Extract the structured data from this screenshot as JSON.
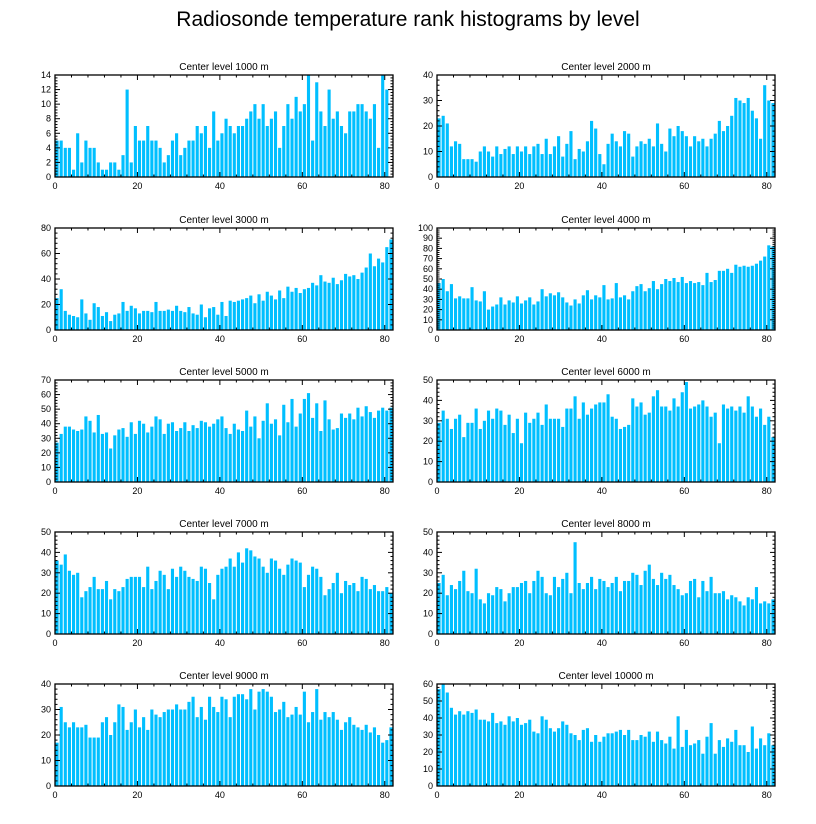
{
  "title": "Radiosonde temperature rank histograms by level",
  "bar_color": "#00bfff",
  "chart_data": [
    {
      "type": "bar",
      "title": "Center level 1000 m",
      "xlim": [
        0,
        82
      ],
      "ylim": [
        0,
        14
      ],
      "xticks": [
        0,
        20,
        40,
        60,
        80
      ],
      "yticks": [
        0,
        2,
        4,
        6,
        8,
        10,
        12,
        14
      ],
      "values": [
        5,
        5,
        4,
        4,
        1,
        6,
        2,
        5,
        4,
        4,
        2,
        1,
        1,
        2,
        2,
        1,
        3,
        12,
        2,
        7,
        5,
        5,
        7,
        5,
        5,
        4,
        2,
        3,
        5,
        6,
        3,
        4,
        5,
        5,
        7,
        6,
        7,
        4,
        9,
        5,
        6,
        8,
        7,
        6,
        7,
        7,
        8,
        9,
        10,
        8,
        10,
        7,
        8,
        9,
        4,
        7,
        10,
        8,
        11,
        9,
        10,
        14,
        5,
        13,
        9,
        7,
        12,
        8,
        9,
        7,
        6,
        9,
        9,
        10,
        10,
        9,
        8,
        10,
        4,
        14,
        12
      ]
    },
    {
      "type": "bar",
      "title": "Center level 2000 m",
      "xlim": [
        0,
        82
      ],
      "ylim": [
        0,
        40
      ],
      "xticks": [
        0,
        20,
        40,
        60,
        80
      ],
      "yticks": [
        0,
        10,
        20,
        30,
        40
      ],
      "values": [
        23,
        24,
        21,
        12,
        14,
        13,
        7,
        7,
        7,
        6,
        10,
        12,
        10,
        8,
        12,
        9,
        11,
        12,
        9,
        12,
        10,
        12,
        9,
        12,
        13,
        9,
        15,
        9,
        12,
        16,
        8,
        13,
        18,
        7,
        11,
        10,
        14,
        22,
        19,
        9,
        5,
        13,
        17,
        14,
        12,
        18,
        17,
        8,
        12,
        14,
        13,
        15,
        12,
        21,
        13,
        10,
        19,
        16,
        20,
        18,
        16,
        12,
        16,
        14,
        15,
        12,
        15,
        17,
        22,
        18,
        20,
        24,
        31,
        30,
        29,
        31,
        26,
        23,
        15,
        36,
        30,
        29
      ]
    },
    {
      "type": "bar",
      "title": "Center level 3000 m",
      "xlim": [
        0,
        82
      ],
      "ylim": [
        0,
        80
      ],
      "xticks": [
        0,
        20,
        40,
        60,
        80
      ],
      "yticks": [
        0,
        20,
        40,
        60,
        80
      ],
      "values": [
        25,
        32,
        15,
        12,
        11,
        10,
        24,
        13,
        8,
        21,
        18,
        11,
        14,
        7,
        12,
        13,
        22,
        15,
        19,
        17,
        13,
        15,
        15,
        14,
        22,
        15,
        15,
        16,
        15,
        19,
        15,
        14,
        18,
        13,
        12,
        20,
        10,
        17,
        18,
        12,
        22,
        11,
        23,
        22,
        23,
        24,
        25,
        27,
        21,
        28,
        23,
        30,
        27,
        24,
        31,
        25,
        34,
        30,
        33,
        29,
        32,
        33,
        37,
        35,
        43,
        38,
        37,
        41,
        36,
        39,
        44,
        42,
        43,
        40,
        45,
        49,
        60,
        50,
        56,
        53,
        65,
        71
      ]
    },
    {
      "type": "bar",
      "title": "Center level 4000 m",
      "xlim": [
        0,
        82
      ],
      "ylim": [
        0,
        100
      ],
      "xticks": [
        0,
        20,
        40,
        60,
        80
      ],
      "yticks": [
        0,
        10,
        20,
        30,
        40,
        50,
        60,
        70,
        80,
        90,
        100
      ],
      "values": [
        46,
        50,
        38,
        45,
        31,
        33,
        31,
        31,
        42,
        29,
        28,
        38,
        20,
        23,
        25,
        32,
        25,
        29,
        27,
        33,
        26,
        29,
        32,
        25,
        28,
        40,
        33,
        36,
        34,
        37,
        32,
        27,
        24,
        30,
        26,
        34,
        39,
        30,
        34,
        32,
        44,
        30,
        31,
        46,
        32,
        34,
        30,
        38,
        43,
        45,
        38,
        41,
        48,
        40,
        45,
        50,
        48,
        51,
        47,
        52,
        46,
        48,
        46,
        47,
        44,
        56,
        47,
        49,
        58,
        58,
        60,
        56,
        64,
        62,
        63,
        62,
        63,
        65,
        68,
        72,
        83,
        82
      ]
    },
    {
      "type": "bar",
      "title": "Center level 5000 m",
      "xlim": [
        0,
        82
      ],
      "ylim": [
        0,
        70
      ],
      "xticks": [
        0,
        20,
        40,
        60,
        80
      ],
      "yticks": [
        0,
        10,
        20,
        30,
        40,
        50,
        60,
        70
      ],
      "values": [
        27,
        33,
        38,
        38,
        36,
        35,
        36,
        45,
        42,
        34,
        46,
        33,
        34,
        23,
        32,
        36,
        37,
        31,
        41,
        33,
        42,
        40,
        34,
        38,
        45,
        43,
        33,
        40,
        41,
        35,
        37,
        41,
        35,
        39,
        37,
        42,
        41,
        38,
        40,
        43,
        45,
        37,
        33,
        40,
        36,
        35,
        49,
        38,
        45,
        30,
        42,
        54,
        40,
        43,
        32,
        53,
        41,
        57,
        38,
        47,
        57,
        61,
        44,
        54,
        35,
        56,
        43,
        36,
        37,
        47,
        44,
        47,
        43,
        51,
        45,
        52,
        48,
        44,
        49,
        51,
        49,
        51
      ]
    },
    {
      "type": "bar",
      "title": "Center level 6000 m",
      "xlim": [
        0,
        82
      ],
      "ylim": [
        0,
        50
      ],
      "xticks": [
        0,
        20,
        40,
        60,
        80
      ],
      "yticks": [
        0,
        10,
        20,
        30,
        40,
        50
      ],
      "values": [
        29,
        35,
        31,
        26,
        31,
        33,
        22,
        29,
        29,
        36,
        26,
        30,
        35,
        31,
        36,
        35,
        28,
        33,
        24,
        31,
        19,
        34,
        29,
        31,
        34,
        28,
        38,
        31,
        31,
        31,
        27,
        36,
        36,
        42,
        31,
        39,
        33,
        36,
        38,
        39,
        39,
        43,
        32,
        31,
        26,
        27,
        28,
        41,
        37,
        39,
        33,
        34,
        42,
        45,
        37,
        37,
        35,
        41,
        37,
        44,
        49,
        36,
        37,
        38,
        40,
        37,
        32,
        34,
        19,
        38,
        36,
        37,
        35,
        37,
        34,
        42,
        37,
        32,
        36,
        28,
        32,
        22
      ]
    },
    {
      "type": "bar",
      "title": "Center level 7000 m",
      "xlim": [
        0,
        82
      ],
      "ylim": [
        0,
        50
      ],
      "xticks": [
        0,
        20,
        40,
        60,
        80
      ],
      "yticks": [
        0,
        10,
        20,
        30,
        40,
        50
      ],
      "values": [
        36,
        34,
        39,
        31,
        29,
        30,
        18,
        21,
        23,
        28,
        22,
        22,
        26,
        17,
        22,
        21,
        23,
        27,
        28,
        28,
        28,
        23,
        33,
        22,
        26,
        31,
        29,
        22,
        32,
        28,
        33,
        31,
        28,
        27,
        26,
        33,
        32,
        25,
        17,
        29,
        32,
        33,
        37,
        33,
        40,
        35,
        42,
        41,
        38,
        37,
        33,
        30,
        37,
        36,
        32,
        29,
        34,
        37,
        36,
        35,
        23,
        29,
        33,
        32,
        28,
        19,
        22,
        25,
        30,
        20,
        26,
        24,
        25,
        21,
        28,
        27,
        22,
        24,
        21,
        21,
        23,
        20
      ]
    },
    {
      "type": "bar",
      "title": "Center level 8000 m",
      "xlim": [
        0,
        82
      ],
      "ylim": [
        0,
        50
      ],
      "xticks": [
        0,
        20,
        40,
        60,
        80
      ],
      "yticks": [
        0,
        10,
        20,
        30,
        40,
        50
      ],
      "values": [
        25,
        29,
        19,
        24,
        22,
        26,
        31,
        21,
        20,
        32,
        17,
        15,
        20,
        19,
        23,
        22,
        16,
        20,
        23,
        23,
        25,
        26,
        20,
        26,
        31,
        28,
        20,
        19,
        28,
        23,
        27,
        30,
        20,
        45,
        25,
        22,
        25,
        28,
        22,
        27,
        26,
        23,
        25,
        28,
        21,
        26,
        26,
        30,
        29,
        24,
        31,
        34,
        27,
        24,
        30,
        27,
        29,
        24,
        22,
        19,
        20,
        26,
        27,
        18,
        26,
        21,
        28,
        20,
        20,
        21,
        17,
        19,
        18,
        16,
        14,
        18,
        17,
        23,
        15,
        16,
        15,
        17
      ]
    },
    {
      "type": "bar",
      "title": "Center level 9000 m",
      "xlim": [
        0,
        82
      ],
      "ylim": [
        0,
        40
      ],
      "xticks": [
        0,
        20,
        40,
        60,
        80
      ],
      "yticks": [
        0,
        10,
        20,
        30,
        40
      ],
      "values": [
        17,
        31,
        25,
        23,
        25,
        23,
        23,
        24,
        19,
        19,
        19,
        25,
        27,
        20,
        25,
        32,
        31,
        22,
        25,
        30,
        23,
        27,
        22,
        30,
        28,
        27,
        29,
        30,
        30,
        32,
        30,
        30,
        33,
        35,
        27,
        31,
        26,
        35,
        31,
        29,
        35,
        34,
        27,
        35,
        36,
        36,
        34,
        38,
        30,
        37,
        38,
        37,
        35,
        29,
        30,
        33,
        27,
        28,
        31,
        28,
        37,
        25,
        29,
        38,
        26,
        29,
        27,
        29,
        26,
        22,
        25,
        27,
        24,
        23,
        22,
        24,
        21,
        23,
        20,
        17,
        18,
        23
      ]
    },
    {
      "type": "bar",
      "title": "Center level 10000 m",
      "xlim": [
        0,
        82
      ],
      "ylim": [
        0,
        60
      ],
      "xticks": [
        0,
        20,
        40,
        60,
        80
      ],
      "yticks": [
        0,
        10,
        20,
        30,
        40,
        50,
        60
      ],
      "values": [
        57,
        60,
        55,
        46,
        42,
        44,
        42,
        44,
        43,
        45,
        39,
        39,
        38,
        43,
        37,
        38,
        36,
        41,
        38,
        40,
        36,
        37,
        39,
        32,
        31,
        41,
        39,
        34,
        32,
        34,
        38,
        36,
        31,
        30,
        27,
        33,
        34,
        26,
        30,
        26,
        29,
        31,
        31,
        32,
        33,
        30,
        33,
        27,
        27,
        30,
        29,
        32,
        26,
        32,
        27,
        25,
        29,
        22,
        41,
        23,
        33,
        24,
        25,
        27,
        19,
        29,
        37,
        19,
        27,
        23,
        28,
        26,
        33,
        24,
        24,
        20,
        35,
        22,
        28,
        24,
        31,
        24
      ]
    }
  ]
}
